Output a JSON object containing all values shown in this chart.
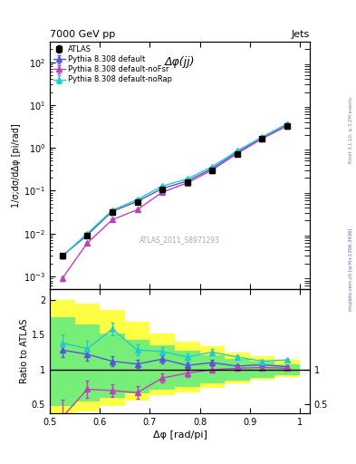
{
  "title_left": "7000 GeV pp",
  "title_right": "Jets",
  "panel_title": "Δφ(jj)",
  "watermark": "ATLAS_2011_S8971293",
  "right_label": "mcplots.cern.ch [arXiv:1306.3436]",
  "rivet_label": "Rivet 3.1.10, ≥ 3.2M events",
  "ylabel_main": "1/σ;dσ/dΔφ [pi/rad]",
  "ylabel_ratio": "Ratio to ATLAS",
  "xlabel": "Δφ [rad/pi]",
  "x_data": [
    0.525,
    0.575,
    0.625,
    0.675,
    0.725,
    0.775,
    0.825,
    0.875,
    0.925,
    0.975
  ],
  "atlas_y": [
    0.003,
    0.009,
    0.031,
    0.053,
    0.105,
    0.155,
    0.3,
    0.72,
    1.6,
    3.2
  ],
  "atlas_yerr": [
    0.0004,
    0.001,
    0.003,
    0.005,
    0.01,
    0.014,
    0.024,
    0.05,
    0.1,
    0.18
  ],
  "pythia_default_y": [
    0.003,
    0.0092,
    0.033,
    0.056,
    0.112,
    0.168,
    0.33,
    0.8,
    1.72,
    3.5
  ],
  "pythia_noFsr_y": [
    0.0009,
    0.006,
    0.021,
    0.036,
    0.092,
    0.152,
    0.305,
    0.74,
    1.64,
    3.28
  ],
  "pythia_noRap_y": [
    0.003,
    0.01,
    0.035,
    0.062,
    0.128,
    0.188,
    0.365,
    0.85,
    1.8,
    3.65
  ],
  "pythia_default_yerr": [
    0.0002,
    0.0007,
    0.002,
    0.003,
    0.007,
    0.011,
    0.018,
    0.038,
    0.075,
    0.14
  ],
  "pythia_noFsr_yerr": [
    0.0001,
    0.0005,
    0.0014,
    0.0025,
    0.006,
    0.01,
    0.016,
    0.034,
    0.068,
    0.13
  ],
  "pythia_noRap_yerr": [
    0.0002,
    0.0008,
    0.0022,
    0.004,
    0.0085,
    0.012,
    0.02,
    0.042,
    0.082,
    0.15
  ],
  "ratio_default_y": [
    1.28,
    1.22,
    1.12,
    1.08,
    1.15,
    1.06,
    1.1,
    1.05,
    1.07,
    1.04
  ],
  "ratio_noFsr_y": [
    0.32,
    0.72,
    0.7,
    0.67,
    0.88,
    0.95,
    1.0,
    1.02,
    1.03,
    1.02
  ],
  "ratio_noRap_y": [
    1.38,
    1.3,
    1.58,
    1.28,
    1.26,
    1.18,
    1.25,
    1.18,
    1.12,
    1.14
  ],
  "ratio_default_yerr": [
    0.1,
    0.09,
    0.07,
    0.06,
    0.055,
    0.045,
    0.038,
    0.028,
    0.022,
    0.018
  ],
  "ratio_noFsr_yerr": [
    0.25,
    0.12,
    0.09,
    0.09,
    0.065,
    0.055,
    0.045,
    0.035,
    0.027,
    0.02
  ],
  "ratio_noRap_yerr": [
    0.13,
    0.11,
    0.09,
    0.08,
    0.062,
    0.05,
    0.04,
    0.032,
    0.025,
    0.019
  ],
  "yellow_band_edges": [
    0.5,
    0.55,
    0.6,
    0.65,
    0.7,
    0.75,
    0.8,
    0.85,
    0.9,
    0.95,
    1.0
  ],
  "yellow_band_lo": [
    0.35,
    0.4,
    0.48,
    0.56,
    0.63,
    0.68,
    0.74,
    0.8,
    0.85,
    0.89,
    0.93
  ],
  "yellow_band_hi": [
    2.0,
    1.95,
    1.85,
    1.68,
    1.52,
    1.4,
    1.33,
    1.25,
    1.19,
    1.14,
    1.1
  ],
  "green_band_lo": [
    0.48,
    0.54,
    0.6,
    0.66,
    0.71,
    0.75,
    0.8,
    0.84,
    0.88,
    0.92,
    0.96
  ],
  "green_band_hi": [
    1.75,
    1.65,
    1.52,
    1.42,
    1.35,
    1.27,
    1.2,
    1.16,
    1.11,
    1.08,
    1.05
  ],
  "color_atlas": "#000000",
  "color_default": "#5555dd",
  "color_noFsr": "#bb44bb",
  "color_noRap": "#22cccc",
  "color_yellow": "#ffff44",
  "color_green": "#77ee77",
  "xlim": [
    0.5,
    1.02
  ],
  "ylim_main": [
    0.0005,
    300
  ],
  "ylim_ratio": [
    0.38,
    2.15
  ]
}
